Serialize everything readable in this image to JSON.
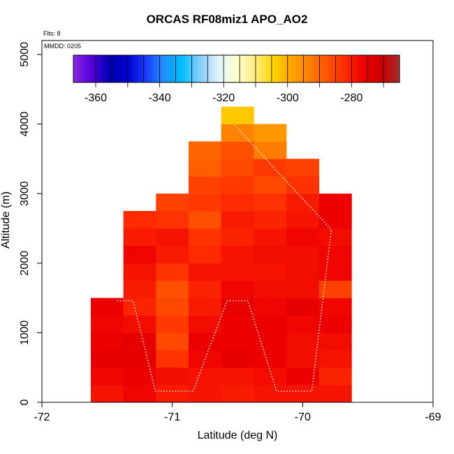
{
  "chart_data": {
    "type": "heatmap",
    "title": "ORCAS RF08miz1 APO_AO2",
    "annotations": [
      "Flts: 8",
      "MMDD: 0205"
    ],
    "xlabel": "Latitude (deg N)",
    "ylabel": "Altitude (m)",
    "xlim": [
      -72,
      -69
    ],
    "ylim": [
      0,
      5200
    ],
    "xticks": [
      -72,
      -71,
      -70,
      -69
    ],
    "yticks": [
      0,
      1000,
      2000,
      3000,
      4000,
      5000
    ],
    "colorbar": {
      "min": -367,
      "max": -265,
      "ticks": [
        -360,
        -340,
        -320,
        -300,
        -280
      ],
      "tick_labels": [
        "-360",
        "-340",
        "-320",
        "-300",
        "-280"
      ],
      "colors": [
        "#8a2be2",
        "#5500dd",
        "#0000b3",
        "#0000cc",
        "#1a3cff",
        "#1e90ff",
        "#00bfff",
        "#87cefa",
        "#e0f4ff",
        "#ffffcc",
        "#ffee88",
        "#ffd700",
        "#ffa500",
        "#ff7f00",
        "#ff5500",
        "#ff2a00",
        "#ee0000",
        "#cc0000",
        "#a52a2a"
      ]
    },
    "cell_width_deg": 0.25,
    "cell_height_m": 250,
    "cells": [
      {
        "lat": -71.5,
        "values": [
          -279,
          -277,
          -275,
          -276,
          -277,
          -276
        ]
      },
      {
        "lat": -71.25,
        "values": [
          -277,
          -276,
          -275,
          -275,
          -278,
          -281,
          -280,
          -279,
          -277,
          -280,
          -282
        ]
      },
      {
        "lat": -71.0,
        "values": [
          -280,
          -278,
          -283,
          -286,
          -284,
          -286,
          -287,
          -283,
          -280,
          -279,
          -283,
          -285
        ]
      },
      {
        "lat": -70.75,
        "values": [
          -279,
          -279,
          -277,
          -276,
          -278,
          -280,
          -281,
          -279,
          -282,
          -283,
          -287,
          -284,
          -285,
          -289,
          -290
        ]
      },
      {
        "lat": -70.5,
        "values": [
          -280,
          -279,
          -275,
          -276,
          -276,
          -275,
          -277,
          -279,
          -279,
          -281,
          -280,
          -282,
          -284,
          -286,
          -287,
          -294,
          -303
        ]
      },
      {
        "lat": -70.25,
        "values": [
          -279,
          -278,
          -276,
          -276,
          -276,
          -277,
          -278,
          -279,
          -278,
          -279,
          -281,
          -283,
          -286,
          -284,
          -293,
          -297
        ]
      },
      {
        "lat": -70.0,
        "values": [
          -279,
          -276,
          -278,
          -278,
          -277,
          -275,
          -278,
          -278,
          -278,
          -277,
          -279,
          -280,
          -283,
          -285
        ]
      },
      {
        "lat": -69.75,
        "values": [
          -279,
          -281,
          -279,
          -278,
          -276,
          -277,
          -285,
          -277,
          -277,
          -278,
          -276,
          -276
        ]
      }
    ],
    "flight_track": [
      {
        "lat": -71.42,
        "alt": 1460
      },
      {
        "lat": -71.3,
        "alt": 1460
      },
      {
        "lat": -71.13,
        "alt": 160
      },
      {
        "lat": -70.84,
        "alt": 160
      },
      {
        "lat": -70.58,
        "alt": 1460
      },
      {
        "lat": -70.42,
        "alt": 1460
      },
      {
        "lat": -70.2,
        "alt": 160
      },
      {
        "lat": -69.93,
        "alt": 160
      },
      {
        "lat": -69.78,
        "alt": 2480
      },
      {
        "lat": -70.52,
        "alt": 3980
      }
    ]
  }
}
